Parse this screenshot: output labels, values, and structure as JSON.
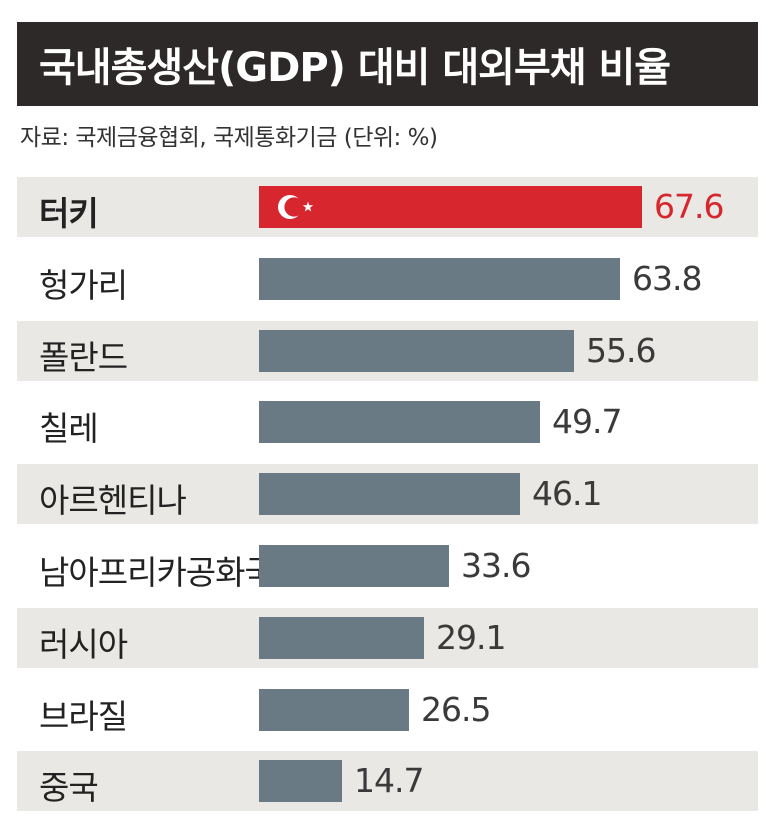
{
  "title": "국내총생산(GDP) 대비 대외부채 비율",
  "source": "자료: 국제금융협회, 국제통화기금 (단위: %)",
  "colors": {
    "title_background": "#2d2928",
    "bar_default": "#6a7a84",
    "bar_highlight": "#d7262e",
    "value_highlight": "#d7262e",
    "row_shade": "#e9e8e4"
  },
  "chart_data": {
    "type": "bar",
    "orientation": "horizontal",
    "categories": [
      "터키",
      "헝가리",
      "폴란드",
      "칠레",
      "아르헨티나",
      "남아프리카공화국",
      "러시아",
      "브라질",
      "중국"
    ],
    "values": [
      67.6,
      63.8,
      55.6,
      49.7,
      46.1,
      33.6,
      29.1,
      26.5,
      14.7
    ],
    "value_labels": [
      "67.6",
      "63.8",
      "55.6",
      "49.7",
      "46.1",
      "33.6",
      "29.1",
      "26.5",
      "14.7"
    ],
    "highlight": "터키",
    "highlight_icon": "turkey-flag-crescent-star-icon",
    "unit": "%"
  }
}
